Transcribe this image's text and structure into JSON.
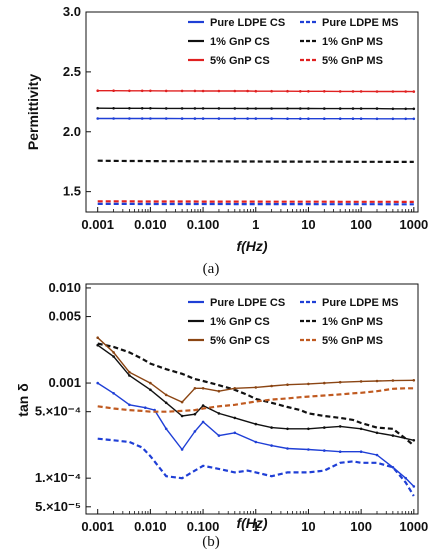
{
  "chart_data": [
    {
      "type": "line",
      "panel_label": "(a)",
      "xlabel": "f(Hz)",
      "ylabel": "Permittivity",
      "x_scale": "log",
      "xlim": [
        0.0006,
        1200
      ],
      "ylim": [
        1.33,
        3.0
      ],
      "x_ticks": [
        0.001,
        0.01,
        0.1,
        1,
        10,
        100,
        1000
      ],
      "x_tick_labels": [
        "0.001",
        "0.010",
        "0.100",
        "1",
        "10",
        "100",
        "1000"
      ],
      "y_ticks": [
        1.5,
        2.0,
        2.5,
        3.0
      ],
      "y_tick_labels": [
        "1.5",
        "2.0",
        "2.5",
        "3.0"
      ],
      "x": [
        0.001,
        0.002,
        0.004,
        0.007,
        0.01,
        0.02,
        0.04,
        0.07,
        0.1,
        0.2,
        0.4,
        0.7,
        1,
        2,
        4,
        7,
        10,
        20,
        40,
        70,
        100,
        200,
        400,
        700,
        1000
      ],
      "series": [
        {
          "name": "Pure LDPE CS",
          "color": "#1f3fd6",
          "style": "solid",
          "values": [
            2.111,
            2.111,
            2.111,
            2.111,
            2.111,
            2.111,
            2.11,
            2.11,
            2.11,
            2.11,
            2.11,
            2.11,
            2.11,
            2.11,
            2.109,
            2.109,
            2.109,
            2.109,
            2.109,
            2.109,
            2.109,
            2.108,
            2.108,
            2.108,
            2.108
          ]
        },
        {
          "name": "Pure LDPE MS",
          "color": "#1f3fd6",
          "style": "dash",
          "values": [
            1.398,
            1.398,
            1.398,
            1.397,
            1.397,
            1.397,
            1.397,
            1.397,
            1.397,
            1.397,
            1.396,
            1.396,
            1.396,
            1.396,
            1.396,
            1.396,
            1.396,
            1.395,
            1.395,
            1.395,
            1.395,
            1.395,
            1.394,
            1.394,
            1.394
          ]
        },
        {
          "name": "1% GnP CS",
          "color": "#111111",
          "style": "solid",
          "values": [
            2.197,
            2.196,
            2.196,
            2.196,
            2.196,
            2.195,
            2.195,
            2.195,
            2.195,
            2.195,
            2.195,
            2.194,
            2.194,
            2.194,
            2.194,
            2.194,
            2.194,
            2.193,
            2.193,
            2.193,
            2.193,
            2.193,
            2.192,
            2.192,
            2.192
          ]
        },
        {
          "name": "1% GnP MS",
          "color": "#111111",
          "style": "dash",
          "values": [
            1.758,
            1.757,
            1.756,
            1.756,
            1.755,
            1.754,
            1.754,
            1.753,
            1.753,
            1.753,
            1.752,
            1.752,
            1.752,
            1.751,
            1.751,
            1.751,
            1.75,
            1.75,
            1.75,
            1.749,
            1.749,
            1.749,
            1.748,
            1.748,
            1.748
          ]
        },
        {
          "name": "5% GnP CS",
          "color": "#e02020",
          "style": "solid",
          "values": [
            2.343,
            2.343,
            2.342,
            2.342,
            2.342,
            2.341,
            2.341,
            2.341,
            2.34,
            2.34,
            2.34,
            2.34,
            2.339,
            2.339,
            2.339,
            2.338,
            2.338,
            2.338,
            2.337,
            2.337,
            2.337,
            2.336,
            2.336,
            2.336,
            2.335
          ]
        },
        {
          "name": "5% GnP MS",
          "color": "#e02020",
          "style": "dash",
          "values": [
            1.419,
            1.419,
            1.419,
            1.418,
            1.418,
            1.418,
            1.418,
            1.418,
            1.417,
            1.417,
            1.417,
            1.417,
            1.417,
            1.416,
            1.416,
            1.416,
            1.416,
            1.416,
            1.415,
            1.415,
            1.415,
            1.415,
            1.415,
            1.414,
            1.414
          ]
        }
      ],
      "legend": {
        "placement": "top-right",
        "columns": 2
      }
    },
    {
      "type": "line",
      "panel_label": "(b)",
      "xlabel": "f(Hz)",
      "ylabel": "tan δ",
      "x_scale": "log",
      "y_scale": "log",
      "xlim": [
        0.0006,
        1200
      ],
      "ylim": [
        4.2e-05,
        0.011
      ],
      "x_ticks": [
        0.001,
        0.01,
        0.1,
        1,
        10,
        100,
        1000
      ],
      "x_tick_labels": [
        "0.001",
        "0.010",
        "0.100",
        "1",
        "10",
        "100",
        "1000"
      ],
      "y_ticks": [
        5e-05,
        0.0001,
        0.0005,
        0.001,
        0.005,
        0.01
      ],
      "y_tick_labels": [
        "5.×10⁻⁵",
        "1.×10⁻⁴",
        "5.×10⁻⁴",
        "0.001",
        "0.005",
        "0.010"
      ],
      "series": [
        {
          "name": "Pure LDPE CS",
          "color": "#1f3fd6",
          "style": "solid",
          "x": [
            0.001,
            0.002,
            0.004,
            0.008,
            0.012,
            0.02,
            0.04,
            0.07,
            0.1,
            0.2,
            0.4,
            1,
            2,
            4,
            10,
            20,
            40,
            100,
            200,
            400,
            700,
            1000
          ],
          "values": [
            0.001,
            0.00078,
            0.00059,
            0.00055,
            0.00052,
            0.00033,
            0.0002,
            0.00031,
            0.00039,
            0.00028,
            0.0003,
            0.00024,
            0.00022,
            0.000205,
            0.0002,
            0.000195,
            0.00019,
            0.00019,
            0.000175,
            0.00013,
            0.0001,
            8.2e-05
          ]
        },
        {
          "name": "Pure LDPE MS",
          "color": "#1f3fd6",
          "style": "dash",
          "x": [
            0.001,
            0.002,
            0.004,
            0.007,
            0.01,
            0.02,
            0.04,
            0.07,
            0.1,
            0.2,
            0.4,
            0.7,
            1,
            2,
            4,
            10,
            20,
            40,
            70,
            100,
            200,
            400,
            700,
            1000
          ],
          "values": [
            0.00026,
            0.00025,
            0.00024,
            0.00021,
            0.00017,
            0.000105,
            0.0001,
            0.00012,
            0.000135,
            0.000125,
            0.000115,
            0.00012,
            0.000115,
            0.000105,
            0.000115,
            0.000115,
            0.00012,
            0.000145,
            0.00015,
            0.000145,
            0.000145,
            0.00013,
            9e-05,
            6.5e-05
          ]
        },
        {
          "name": "1% GnP CS",
          "color": "#111111",
          "style": "solid",
          "x": [
            0.001,
            0.002,
            0.004,
            0.01,
            0.02,
            0.04,
            0.07,
            0.1,
            0.2,
            0.4,
            1,
            2,
            4,
            10,
            20,
            40,
            100,
            200,
            400,
            1000
          ],
          "values": [
            0.0025,
            0.0019,
            0.0012,
            0.00085,
            0.00062,
            0.00045,
            0.00047,
            0.00058,
            0.00048,
            0.00043,
            0.00037,
            0.00034,
            0.00033,
            0.00033,
            0.00034,
            0.00035,
            0.00033,
            0.0003,
            0.00028,
            0.00025
          ]
        },
        {
          "name": "1% GnP MS",
          "color": "#111111",
          "style": "dash",
          "x": [
            0.001,
            0.002,
            0.004,
            0.007,
            0.01,
            0.02,
            0.04,
            0.07,
            0.1,
            0.2,
            0.4,
            0.7,
            1,
            2,
            4,
            7,
            10,
            20,
            40,
            70,
            100,
            200,
            400,
            700,
            1000
          ],
          "values": [
            0.0026,
            0.0024,
            0.0021,
            0.0018,
            0.0016,
            0.0014,
            0.00125,
            0.0011,
            0.00105,
            0.00095,
            0.00085,
            0.00075,
            0.00068,
            0.00062,
            0.00056,
            0.00052,
            0.00048,
            0.00045,
            0.00043,
            0.00041,
            0.00038,
            0.00034,
            0.00033,
            0.00026,
            0.00022
          ]
        },
        {
          "name": "5% GnP CS",
          "color": "#8b4513",
          "style": "solid",
          "x": [
            0.001,
            0.002,
            0.004,
            0.01,
            0.02,
            0.04,
            0.07,
            0.1,
            0.2,
            0.4,
            1,
            2,
            4,
            10,
            20,
            40,
            100,
            200,
            400,
            1000
          ],
          "values": [
            0.003,
            0.0021,
            0.0013,
            0.001,
            0.00075,
            0.00063,
            0.00088,
            0.00088,
            0.00082,
            0.00088,
            0.0009,
            0.00093,
            0.00096,
            0.00098,
            0.001,
            0.00102,
            0.00104,
            0.00105,
            0.00106,
            0.00107
          ]
        },
        {
          "name": "5% GnP MS",
          "color": "#c05a20",
          "style": "dash",
          "x": [
            0.001,
            0.002,
            0.004,
            0.007,
            0.01,
            0.02,
            0.04,
            0.07,
            0.1,
            0.2,
            0.4,
            0.7,
            1,
            2,
            4,
            7,
            10,
            20,
            40,
            70,
            100,
            200,
            400,
            700,
            1000
          ],
          "values": [
            0.00057,
            0.00054,
            0.00052,
            0.00051,
            0.0005,
            0.0005,
            0.00051,
            0.00052,
            0.00054,
            0.00057,
            0.00059,
            0.00062,
            0.00064,
            0.00067,
            0.00069,
            0.00071,
            0.00072,
            0.00074,
            0.00076,
            0.00078,
            0.00079,
            0.00082,
            0.00087,
            0.00088,
            0.00088
          ]
        }
      ],
      "legend": {
        "placement": "top-right",
        "columns": 2
      }
    }
  ]
}
